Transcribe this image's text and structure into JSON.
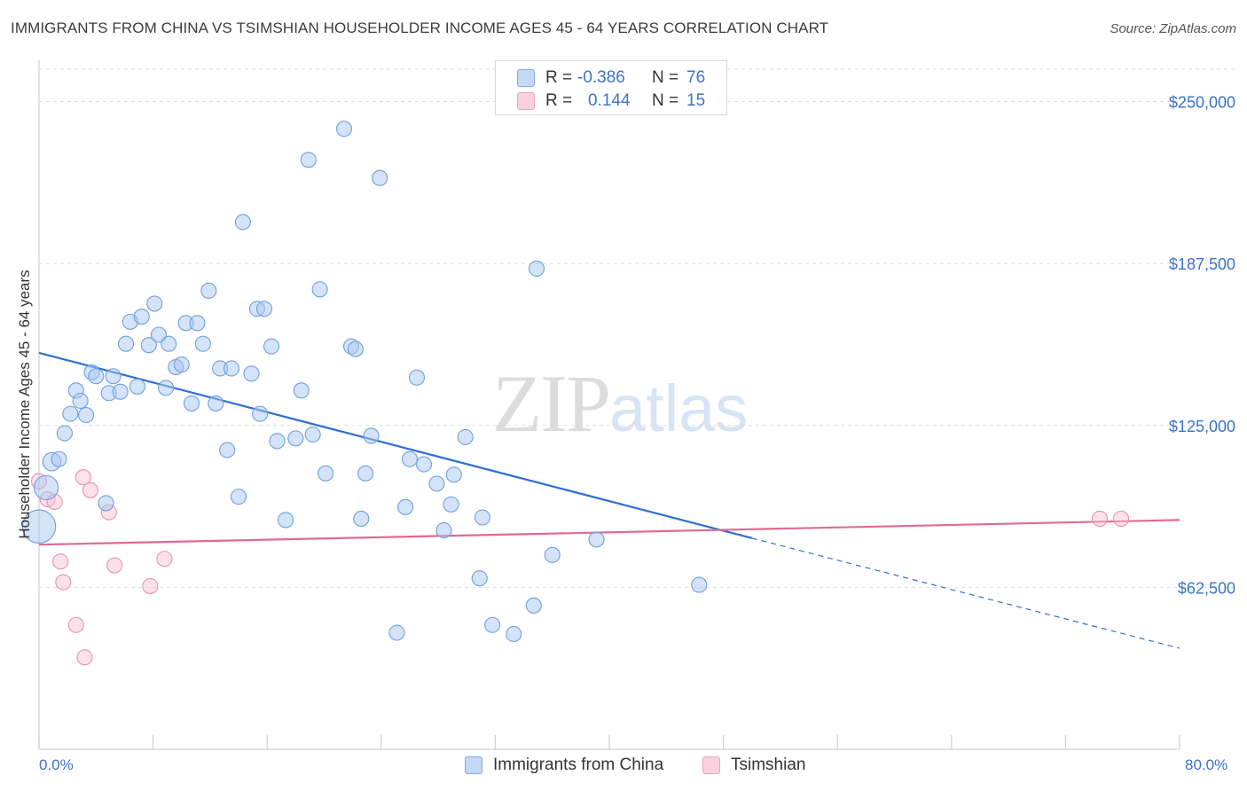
{
  "title": "IMMIGRANTS FROM CHINA VS TSIMSHIAN HOUSEHOLDER INCOME AGES 45 - 64 YEARS CORRELATION CHART",
  "source": "Source: ZipAtlas.com",
  "watermark": {
    "zip": "ZIP",
    "atlas": "atlas"
  },
  "legend": {
    "rows": [
      {
        "r_label": "R =",
        "r_value": "-0.386",
        "n_label": "N =",
        "n_value": "76"
      },
      {
        "r_label": "R =",
        "r_value": "0.144",
        "n_label": "N =",
        "n_value": "15"
      }
    ]
  },
  "bottom_legend": [
    "Immigrants from China",
    "Tsimshian"
  ],
  "colors": {
    "china_fill": "#a9c8ef",
    "china_stroke": "#6f9fdc",
    "china_line": "#2f6fd0",
    "tsim_fill": "#f6bfd0",
    "tsim_stroke": "#e892ad",
    "tsim_line": "#e06a95",
    "axis_label": "#3b73c9",
    "grid": "#dddddd"
  },
  "chart_data": {
    "type": "scatter",
    "title": "IMMIGRANTS FROM CHINA VS TSIMSHIAN HOUSEHOLDER INCOME AGES 45 - 64 YEARS CORRELATION CHART",
    "xlabel": "",
    "ylabel": "Householder Income Ages 45 - 64 years",
    "xlim": [
      0,
      80
    ],
    "ylim": [
      0,
      262500
    ],
    "x_tick_labels": [
      "0.0%",
      "80.0%"
    ],
    "y_ticks": [
      62500,
      125000,
      187500,
      250000
    ],
    "y_tick_labels": [
      "$62,500",
      "$125,000",
      "$187,500",
      "$250,000"
    ],
    "grid": true,
    "legend_position": "top-center",
    "series": [
      {
        "name": "Immigrants from China",
        "r": -0.386,
        "n": 76,
        "trend": {
          "x0": 0,
          "y0": 153000,
          "x1": 50,
          "y1": 81500,
          "dashed_to_x": 80,
          "dashed_to_y": 39000
        },
        "points": [
          [
            0,
            86000,
            2.2
          ],
          [
            0.5,
            101000,
            1.6
          ],
          [
            0.9,
            111000,
            1.2
          ],
          [
            1.4,
            112000,
            1.0
          ],
          [
            1.8,
            122000,
            1.0
          ],
          [
            2.2,
            129500,
            1.0
          ],
          [
            2.6,
            138500,
            1.0
          ],
          [
            2.9,
            134500,
            1.0
          ],
          [
            3.3,
            129000,
            1.0
          ],
          [
            3.7,
            145500,
            1.0
          ],
          [
            4.0,
            144000,
            1.0
          ],
          [
            4.7,
            95000,
            1.0
          ],
          [
            4.9,
            137500,
            1.0
          ],
          [
            5.2,
            144000,
            1.0
          ],
          [
            5.7,
            138000,
            1.0
          ],
          [
            6.1,
            156500,
            1.0
          ],
          [
            6.4,
            165000,
            1.0
          ],
          [
            6.9,
            140000,
            1.0
          ],
          [
            7.2,
            167000,
            1.0
          ],
          [
            7.7,
            156000,
            1.0
          ],
          [
            8.1,
            172000,
            1.0
          ],
          [
            8.4,
            160000,
            1.0
          ],
          [
            8.9,
            139500,
            1.0
          ],
          [
            9.1,
            156500,
            1.0
          ],
          [
            9.6,
            147500,
            1.0
          ],
          [
            10.0,
            148500,
            1.0
          ],
          [
            10.3,
            164500,
            1.0
          ],
          [
            10.7,
            133500,
            1.0
          ],
          [
            11.1,
            164500,
            1.0
          ],
          [
            11.5,
            156500,
            1.0
          ],
          [
            11.9,
            177000,
            1.0
          ],
          [
            12.4,
            133500,
            1.0
          ],
          [
            12.7,
            147000,
            1.0
          ],
          [
            13.2,
            115500,
            1.0
          ],
          [
            13.5,
            147000,
            1.0
          ],
          [
            14.0,
            97500,
            1.0
          ],
          [
            14.3,
            203500,
            1.0
          ],
          [
            14.9,
            145000,
            1.0
          ],
          [
            15.3,
            170000,
            1.0
          ],
          [
            15.5,
            129500,
            1.0
          ],
          [
            15.8,
            170000,
            1.0
          ],
          [
            16.3,
            155500,
            1.0
          ],
          [
            16.7,
            119000,
            1.0
          ],
          [
            17.3,
            88500,
            1.0
          ],
          [
            18.0,
            120000,
            1.0
          ],
          [
            18.4,
            138500,
            1.0
          ],
          [
            18.9,
            227500,
            1.0
          ],
          [
            19.2,
            121500,
            1.0
          ],
          [
            19.7,
            177500,
            1.0
          ],
          [
            20.1,
            106500,
            1.0
          ],
          [
            21.4,
            239500,
            1.0
          ],
          [
            21.9,
            155500,
            1.0
          ],
          [
            22.2,
            154500,
            1.0
          ],
          [
            22.6,
            89000,
            1.0
          ],
          [
            22.9,
            106500,
            1.0
          ],
          [
            23.3,
            121000,
            1.0
          ],
          [
            23.9,
            220500,
            1.0
          ],
          [
            25.1,
            45000,
            1.0
          ],
          [
            25.7,
            93500,
            1.0
          ],
          [
            26.0,
            112000,
            1.0
          ],
          [
            26.5,
            143500,
            1.0
          ],
          [
            27.0,
            110000,
            1.0
          ],
          [
            27.9,
            102500,
            1.0
          ],
          [
            28.4,
            84500,
            1.0
          ],
          [
            28.9,
            94500,
            1.0
          ],
          [
            29.1,
            106000,
            1.0
          ],
          [
            29.9,
            120500,
            1.0
          ],
          [
            30.9,
            66000,
            1.0
          ],
          [
            31.1,
            89500,
            1.0
          ],
          [
            31.8,
            48000,
            1.0
          ],
          [
            33.3,
            44500,
            1.0
          ],
          [
            34.7,
            55500,
            1.0
          ],
          [
            34.9,
            185500,
            1.0
          ],
          [
            36.0,
            75000,
            1.0
          ],
          [
            39.1,
            81000,
            1.0
          ],
          [
            46.3,
            63500,
            1.0
          ]
        ]
      },
      {
        "name": "Tsimshian",
        "r": 0.144,
        "n": 15,
        "trend": {
          "x0": 0,
          "y0": 79000,
          "x1": 80,
          "y1": 88500
        },
        "points": [
          [
            0,
            103500,
            1.0
          ],
          [
            0.6,
            96500,
            1.0
          ],
          [
            1.1,
            95500,
            1.0
          ],
          [
            1.5,
            72500,
            1.0
          ],
          [
            1.7,
            64500,
            1.0
          ],
          [
            2.6,
            48000,
            1.0
          ],
          [
            3.1,
            105000,
            1.0
          ],
          [
            3.2,
            35500,
            1.0
          ],
          [
            3.6,
            100000,
            1.0
          ],
          [
            4.9,
            91500,
            1.0
          ],
          [
            5.3,
            71000,
            1.0
          ],
          [
            7.8,
            63000,
            1.0
          ],
          [
            8.8,
            73500,
            1.0
          ],
          [
            74.4,
            89000,
            1.0
          ],
          [
            75.9,
            89000,
            1.0
          ]
        ]
      }
    ]
  }
}
